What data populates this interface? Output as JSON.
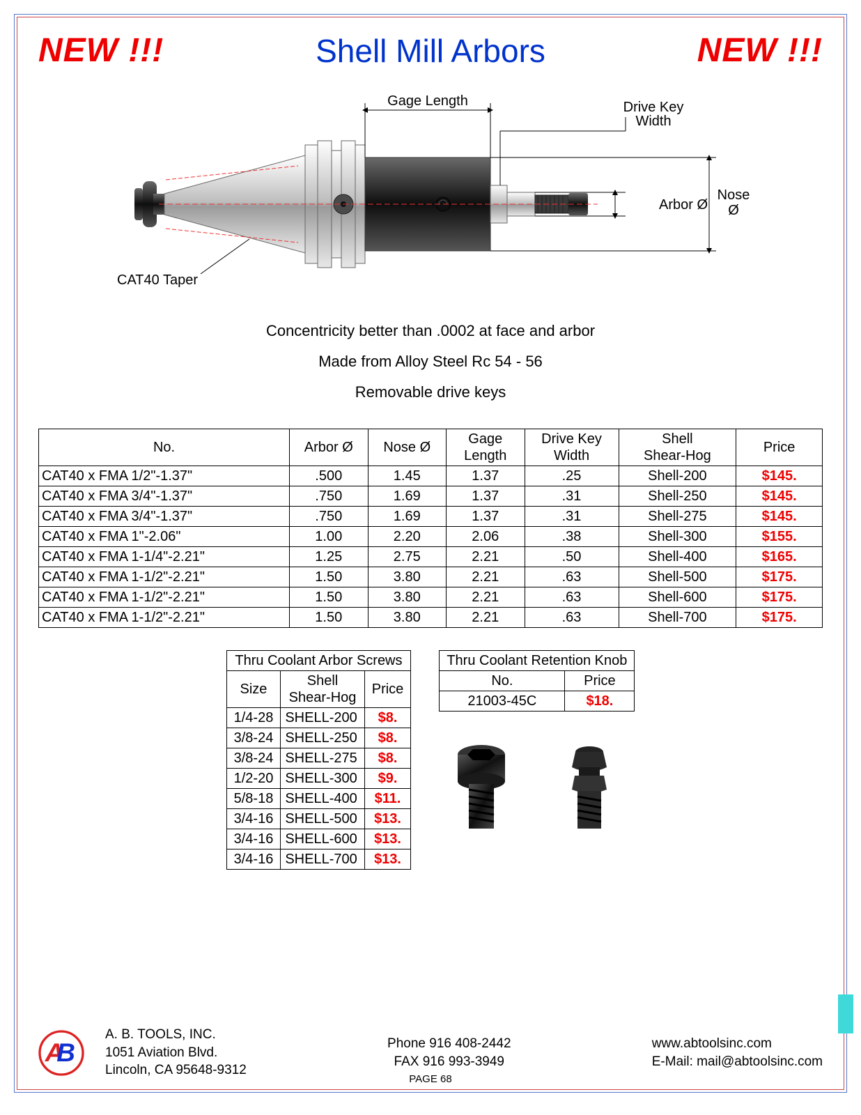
{
  "header": {
    "new_left": "NEW !!!",
    "title": "Shell Mill Arbors",
    "new_right": "NEW !!!"
  },
  "diagram_labels": {
    "gage_length": "Gage Length",
    "drive_key_width": "Drive Key\nWidth",
    "arbor_d": "Arbor Ø",
    "nose_d": "Nose\nØ",
    "taper": "CAT40 Taper"
  },
  "diagram_style": {
    "taper_fill": "#d8d8d8",
    "taper_stroke": "#555",
    "flange_fill": "#cfcfcf",
    "body_fill": "#2f2f2f",
    "arbor_fill": "#9a9a9a",
    "thread_fill": "#3a3a3a",
    "knob_fill": "#1a1a1a",
    "dim_color": "#000",
    "centerline_color": "#e33"
  },
  "spec_lines": [
    "Concentricity better than .0002 at face and arbor",
    "Made from Alloy Steel Rc 54 - 56",
    "Removable drive keys"
  ],
  "main_table": {
    "headers": [
      "No.",
      "Arbor Ø",
      "Nose Ø",
      "Gage\nLength",
      "Drive Key\nWidth",
      "Shell\nShear-Hog",
      "Price"
    ],
    "rows": [
      [
        "CAT40 x FMA 1/2\"-1.37\"",
        ".500",
        "1.45",
        "1.37",
        ".25",
        "Shell-200",
        "$145."
      ],
      [
        "CAT40 x FMA 3/4\"-1.37\"",
        ".750",
        "1.69",
        "1.37",
        ".31",
        "Shell-250",
        "$145."
      ],
      [
        "CAT40 x FMA 3/4\"-1.37\"",
        ".750",
        "1.69",
        "1.37",
        ".31",
        "Shell-275",
        "$145."
      ],
      [
        "CAT40 x FMA 1\"-2.06\"",
        "1.00",
        "2.20",
        "2.06",
        ".38",
        "Shell-300",
        "$155."
      ],
      [
        "CAT40 x FMA 1-1/4\"-2.21\"",
        "1.25",
        "2.75",
        "2.21",
        ".50",
        "Shell-400",
        "$165."
      ],
      [
        "CAT40 x FMA 1-1/2\"-2.21\"",
        "1.50",
        "3.80",
        "2.21",
        ".63",
        "Shell-500",
        "$175."
      ],
      [
        "CAT40 x FMA 1-1/2\"-2.21\"",
        "1.50",
        "3.80",
        "2.21",
        ".63",
        "Shell-600",
        "$175."
      ],
      [
        "CAT40 x FMA 1-1/2\"-2.21\"",
        "1.50",
        "3.80",
        "2.21",
        ".63",
        "Shell-700",
        "$175."
      ]
    ],
    "col_widths": [
      "32%",
      "10%",
      "10%",
      "10%",
      "12%",
      "15%",
      "11%"
    ]
  },
  "screws_table": {
    "title": "Thru Coolant Arbor Screws",
    "headers": [
      "Size",
      "Shell\nShear-Hog",
      "Price"
    ],
    "rows": [
      [
        "1/4-28",
        "SHELL-200",
        "$8."
      ],
      [
        "3/8-24",
        "SHELL-250",
        "$8."
      ],
      [
        "3/8-24",
        "SHELL-275",
        "$8."
      ],
      [
        "1/2-20",
        "SHELL-300",
        "$9."
      ],
      [
        "5/8-18",
        "SHELL-400",
        "$11."
      ],
      [
        "3/4-16",
        "SHELL-500",
        "$13."
      ],
      [
        "3/4-16",
        "SHELL-600",
        "$13."
      ],
      [
        "3/4-16",
        "SHELL-700",
        "$13."
      ]
    ]
  },
  "knob_table": {
    "title": "Thru Coolant Retention Knob",
    "headers": [
      "No.",
      "Price"
    ],
    "rows": [
      [
        "21003-45C",
        "$18."
      ]
    ]
  },
  "footer": {
    "company": "A. B. TOOLS, INC.",
    "addr1": "1051 Aviation Blvd.",
    "addr2": "Lincoln, CA 95648-9312",
    "phone": "Phone 916 408-2442",
    "fax": "FAX 916 993-3949",
    "web": "www.abtoolsinc.com",
    "email": "E-Mail: mail@abtoolsinc.com",
    "page": "PAGE 68"
  },
  "logo_colors": {
    "ring": "#d22",
    "a": "#d22",
    "b": "#1030d0",
    "bg": "#fff"
  }
}
